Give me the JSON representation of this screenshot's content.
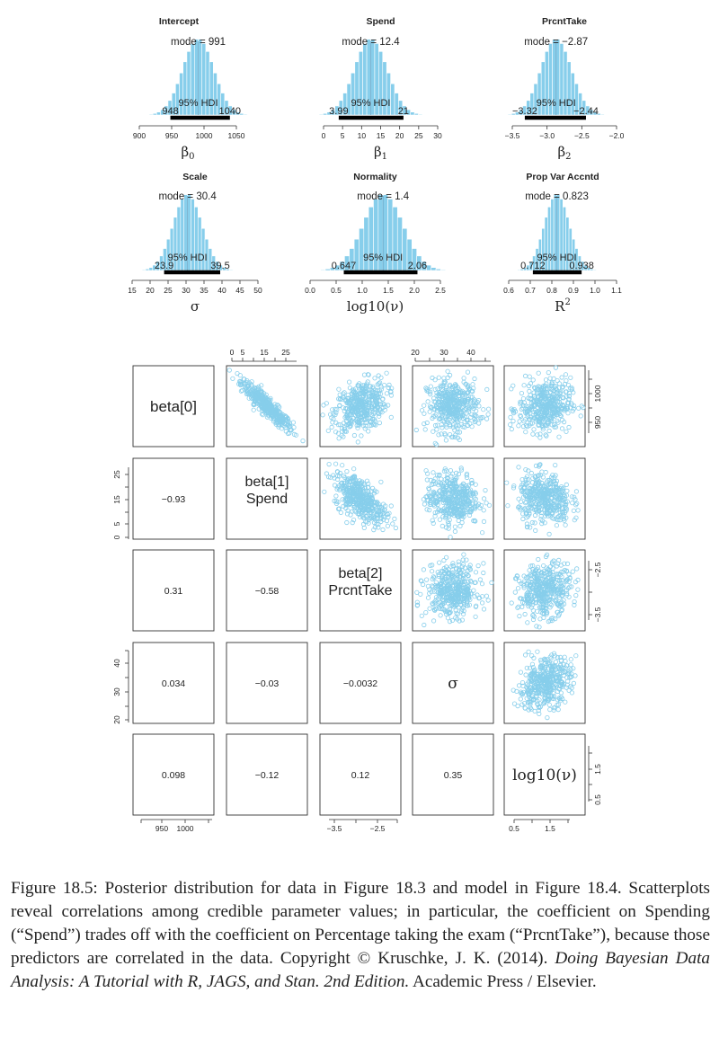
{
  "colors": {
    "bar": "#87ceeb",
    "bar_stroke": "#ffffff",
    "point": "#87ceeb",
    "hdi": "#000000",
    "axis": "#333333"
  },
  "chart_data": [
    {
      "type": "bar",
      "title": "Intercept",
      "mode_label": "mode = 991",
      "hdi_label": "95% HDI",
      "hdi_low_label": "948",
      "hdi_high_label": "1040",
      "mode": 991,
      "sd": 24,
      "hdi": [
        948,
        1040
      ],
      "xlim": [
        900,
        1050
      ],
      "ticks": [
        900,
        950,
        1000,
        1050
      ],
      "tick_labels": [
        "900",
        "950",
        "1000",
        "1050"
      ],
      "xlabel_base": "β",
      "xlabel_sub": "0"
    },
    {
      "type": "bar",
      "title": "Spend",
      "mode_label": "mode = 12.4",
      "hdi_label": "95% HDI",
      "hdi_low_label": "3.99",
      "hdi_high_label": "21",
      "mode": 12.4,
      "sd": 4.3,
      "hdi": [
        3.99,
        21
      ],
      "xlim": [
        0,
        30
      ],
      "ticks": [
        0,
        5,
        10,
        15,
        20,
        25,
        30
      ],
      "tick_labels": [
        "0",
        "5",
        "10",
        "15",
        "20",
        "25",
        "30"
      ],
      "xlabel_base": "β",
      "xlabel_sub": "1"
    },
    {
      "type": "bar",
      "title": "PrcntTake",
      "mode_label": "mode = −2.87",
      "hdi_label": "95% HDI",
      "hdi_low_label": "−3.32",
      "hdi_high_label": "−2.44",
      "mode": -2.87,
      "sd": 0.22,
      "hdi": [
        -3.32,
        -2.44
      ],
      "xlim": [
        -3.5,
        -2.0
      ],
      "ticks": [
        -3.5,
        -3.0,
        -2.5,
        -2.0
      ],
      "tick_labels": [
        "−3.5",
        "−3.0",
        "−2.5",
        "−2.0"
      ],
      "xlabel_base": "β",
      "xlabel_sub": "2"
    },
    {
      "type": "bar",
      "title": "Scale",
      "mode_label": "mode = 30.4",
      "hdi_label": "95% HDI",
      "hdi_low_label": "23.9",
      "hdi_high_label": "39.5",
      "mode": 30.4,
      "sd": 4.0,
      "hdi": [
        23.9,
        39.5
      ],
      "xlim": [
        15,
        50
      ],
      "ticks": [
        15,
        20,
        25,
        30,
        35,
        40,
        45,
        50
      ],
      "tick_labels": [
        "15",
        "20",
        "25",
        "30",
        "35",
        "40",
        "45",
        "50"
      ],
      "xlabel_base": "σ",
      "xlabel_sub": ""
    },
    {
      "type": "bar",
      "title": "Normality",
      "mode_label": "mode = 1.4",
      "hdi_label": "95% HDI",
      "hdi_low_label": "0.647",
      "hdi_high_label": "2.06",
      "mode": 1.4,
      "sd": 0.38,
      "hdi": [
        0.647,
        2.06
      ],
      "xlim": [
        0,
        2.5
      ],
      "ticks": [
        0,
        0.5,
        1.0,
        1.5,
        2.0,
        2.5
      ],
      "tick_labels": [
        "0.0",
        "0.5",
        "1.0",
        "1.5",
        "2.0",
        "2.5"
      ],
      "xlabel_base": "log10(ν)",
      "xlabel_sub": ""
    },
    {
      "type": "bar",
      "title": "Prop Var Accntd",
      "mode_label": "mode = 0.823",
      "hdi_label": "95% HDI",
      "hdi_low_label": "0.712",
      "hdi_high_label": "0.938",
      "mode": 0.823,
      "sd": 0.058,
      "hdi": [
        0.712,
        0.938
      ],
      "xlim": [
        0.6,
        1.1
      ],
      "ticks": [
        0.6,
        0.7,
        0.8,
        0.9,
        1.0,
        1.1
      ],
      "tick_labels": [
        "0.6",
        "0.7",
        "0.8",
        "0.9",
        "1.0",
        "1.1"
      ],
      "xlabel_base": "R",
      "xlabel_sub": "2"
    }
  ],
  "pairs": {
    "labels": [
      "beta[0]",
      "beta[1]\nSpend",
      "beta[2]\nPrcntTake",
      "σ",
      "log10(ν)"
    ],
    "correlations": [
      {
        "row": 1,
        "col": 0,
        "value": "−0.93"
      },
      {
        "row": 2,
        "col": 0,
        "value": "0.31"
      },
      {
        "row": 2,
        "col": 1,
        "value": "−0.58"
      },
      {
        "row": 3,
        "col": 0,
        "value": "0.034"
      },
      {
        "row": 3,
        "col": 1,
        "value": "−0.03"
      },
      {
        "row": 3,
        "col": 2,
        "value": "−0.0032"
      },
      {
        "row": 4,
        "col": 0,
        "value": "0.098"
      },
      {
        "row": 4,
        "col": 1,
        "value": "−0.12"
      },
      {
        "row": 4,
        "col": 2,
        "value": "0.12"
      },
      {
        "row": 4,
        "col": 3,
        "value": "0.35"
      }
    ],
    "axes": {
      "top_col1": [
        "0",
        "5",
        "15",
        "25"
      ],
      "top_col3": [
        "20",
        "30",
        "40"
      ],
      "right_row0": [
        "950",
        "1000"
      ],
      "right_row2": [
        "−3.5",
        "−2.5"
      ],
      "right_row4": [
        "0.5",
        "1.5"
      ],
      "left_row1": [
        "0",
        "5",
        "15",
        "25"
      ],
      "left_row3": [
        "20",
        "30",
        "40"
      ],
      "bottom_col0": [
        "950",
        "1000"
      ],
      "bottom_col2": [
        "−3.5",
        "−2.5"
      ],
      "bottom_col4": [
        "0.5",
        "1.5"
      ]
    }
  },
  "caption": {
    "line1": "Figure 18.5: Posterior distribution for data in Figure 18.3 and model in Figure 18.4. Scatterplots reveal correlations among credible parameter values; in particular, the coefficient on Spending (“Spend”) trades off with the coefficient on Percentage taking the exam (“PrcntTake”), because those predictors are correlated in the data.  Copyright © Kruschke, J. K. (2014). ",
    "book": "Doing Bayesian Data Analysis: A Tutorial with R, JAGS, and Stan. 2nd Edition.",
    "tail": " Academic Press / Elsevier."
  }
}
